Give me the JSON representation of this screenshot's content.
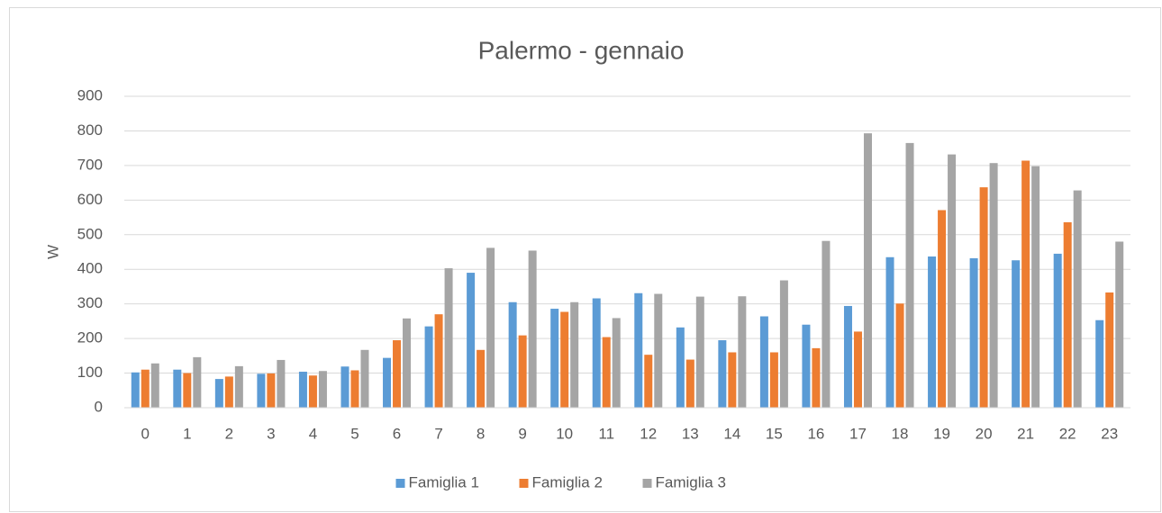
{
  "chart_data": {
    "type": "bar",
    "title": "Palermo - gennaio",
    "y_label": "W",
    "categories": [
      "0",
      "1",
      "2",
      "3",
      "4",
      "5",
      "6",
      "7",
      "8",
      "9",
      "10",
      "11",
      "12",
      "13",
      "14",
      "15",
      "16",
      "17",
      "18",
      "19",
      "20",
      "21",
      "22",
      "23"
    ],
    "series": [
      {
        "name": "Famiglia 1",
        "color": "#5b9bd5",
        "values": [
          102,
          110,
          83,
          98,
          104,
          119,
          144,
          235,
          390,
          305,
          286,
          316,
          331,
          232,
          195,
          264,
          240,
          294,
          435,
          437,
          432,
          426,
          445,
          253
        ]
      },
      {
        "name": "Famiglia 2",
        "color": "#ed7d31",
        "values": [
          110,
          100,
          90,
          99,
          93,
          108,
          195,
          270,
          167,
          209,
          277,
          204,
          153,
          139,
          160,
          160,
          172,
          220,
          301,
          571,
          637,
          714,
          536,
          333
        ]
      },
      {
        "name": "Famiglia 3",
        "color": "#a5a5a5",
        "values": [
          128,
          146,
          120,
          138,
          106,
          167,
          258,
          403,
          462,
          454,
          305,
          259,
          329,
          321,
          322,
          368,
          482,
          793,
          765,
          732,
          707,
          698,
          628,
          480
        ]
      }
    ],
    "ylim": [
      0,
      900
    ],
    "yticks": [
      0,
      100,
      200,
      300,
      400,
      500,
      600,
      700,
      800,
      900
    ],
    "grid": true,
    "legend": "bottom"
  }
}
